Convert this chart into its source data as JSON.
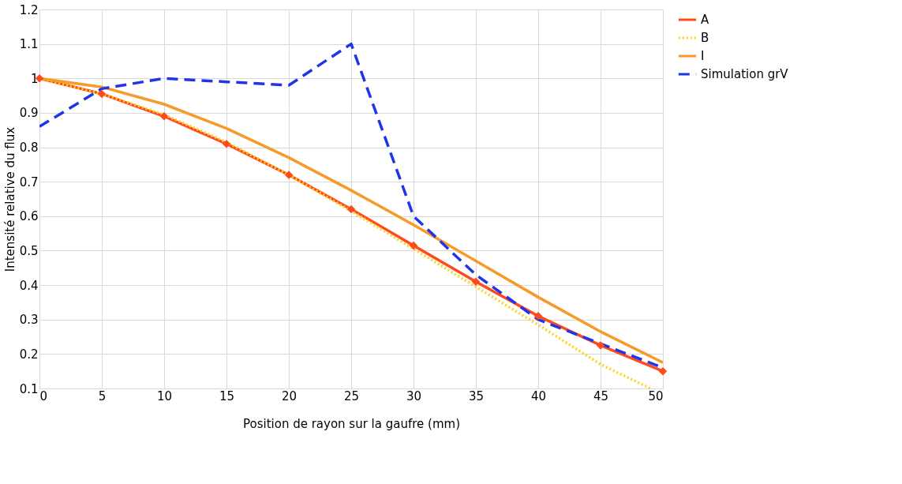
{
  "chart_data": {
    "type": "line",
    "xlabel": "Position de rayon sur la gaufre (mm)",
    "ylabel": "Intensité relative du flux",
    "x": [
      0,
      5,
      10,
      15,
      20,
      25,
      30,
      35,
      40,
      45,
      50
    ],
    "series": [
      {
        "name": "A",
        "color": "#ff4a1c",
        "marker": "diamond",
        "line_style": "solid",
        "values": [
          1,
          0.955,
          0.89,
          0.81,
          0.72,
          0.62,
          0.515,
          0.41,
          0.31,
          0.225,
          0.15
        ]
      },
      {
        "name": "B",
        "color": "#ffd21e",
        "marker": "none",
        "line_style": "dotted",
        "x": [
          0,
          5,
          10,
          15,
          20,
          25,
          30,
          35,
          40,
          45,
          49
        ],
        "values": [
          1,
          0.955,
          0.895,
          0.815,
          0.72,
          0.615,
          0.505,
          0.395,
          0.285,
          0.17,
          0.1
        ]
      },
      {
        "name": "I",
        "color": "#f79a2a",
        "marker": "none",
        "line_style": "solid",
        "values": [
          1,
          0.975,
          0.925,
          0.855,
          0.77,
          0.675,
          0.575,
          0.47,
          0.365,
          0.265,
          0.175
        ]
      },
      {
        "name": "Simulation grV",
        "color": "#1f35e6",
        "marker": "none",
        "line_style": "dashed",
        "values": [
          0.86,
          0.97,
          1.0,
          0.99,
          0.98,
          1.1,
          0.6,
          0.43,
          0.3,
          0.23,
          0.16
        ]
      }
    ],
    "xlim": [
      0,
      50
    ],
    "xticks": [
      0,
      5,
      10,
      15,
      20,
      25,
      30,
      35,
      40,
      45,
      50
    ],
    "ylim": [
      0.1,
      1.2
    ],
    "yticks": [
      0.1,
      0.2,
      0.3,
      0.4,
      0.5,
      0.6,
      0.7,
      0.8,
      0.9,
      1,
      1.1,
      1.2
    ],
    "grid": true,
    "legend": "right"
  }
}
